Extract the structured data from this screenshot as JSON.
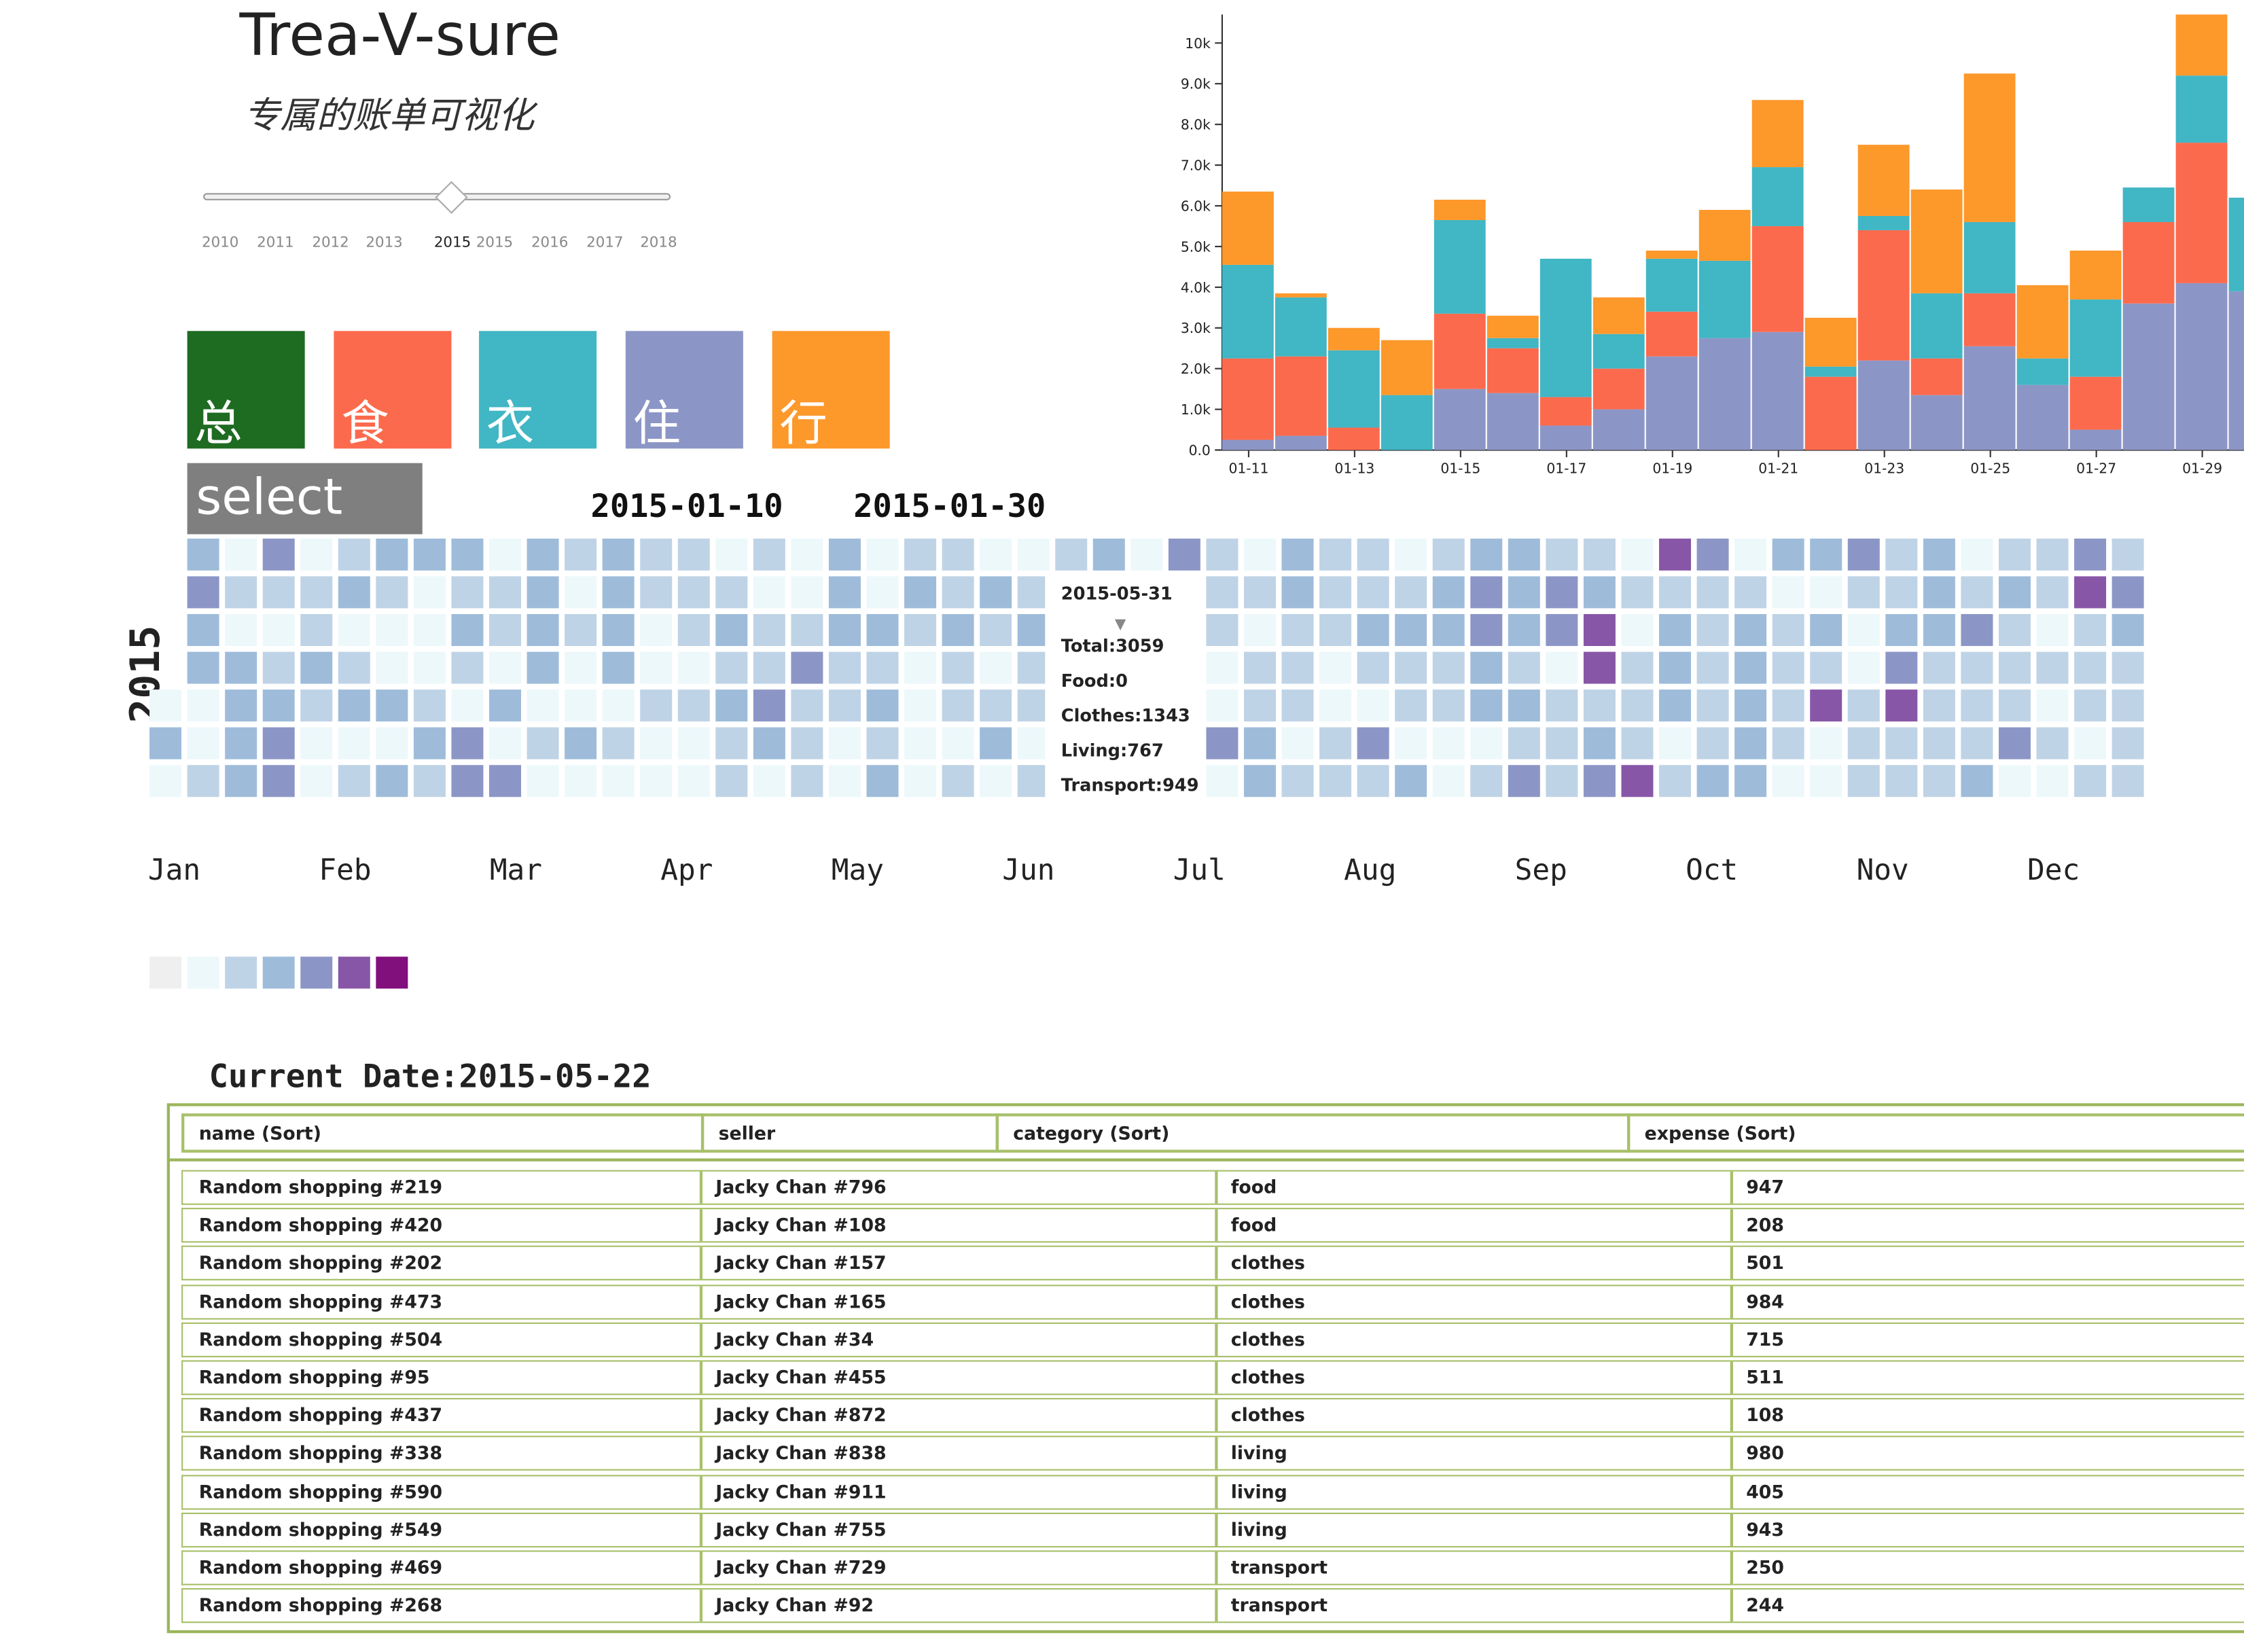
{
  "header": {
    "title": "Trea-V-sure",
    "subtitle": "专属的账单可视化"
  },
  "year_slider": {
    "ticks": [
      "2010",
      "2011",
      "2012",
      "2013",
      "2015",
      "2015",
      "2016",
      "2017",
      "2018"
    ],
    "selected_index": 4
  },
  "categories": [
    {
      "label": "总",
      "color": "#1e6b22"
    },
    {
      "label": "食",
      "color": "#fc6a4d"
    },
    {
      "label": "衣",
      "color": "#41b6c4"
    },
    {
      "label": "住",
      "color": "#8c96c6"
    },
    {
      "label": "行",
      "color": "#fd982b"
    }
  ],
  "select_button": "select",
  "range": {
    "start": "2015-01-10",
    "end": "2015-01-30"
  },
  "calendar": {
    "year": "2015",
    "months": [
      "Jan",
      "Feb",
      "Mar",
      "Apr",
      "May",
      "Jun",
      "Jul",
      "Aug",
      "Sep",
      "Oct",
      "Nov",
      "Dec"
    ],
    "palette": [
      "#efefef",
      "#edf8fb",
      "#bfd3e6",
      "#9ebcda",
      "#8c96c6",
      "#8856a7",
      "#810f7c"
    ],
    "levels": "131343311212133334212344122321123123123211313311123232321441221314333312121211313333121221121122212111232322212243111242223332211113232323211112232212132123112322122242223343321114222444212123222114112122333322212222112222321421232213233221134433123332324244122223552341212225523331242222231233333312222131325114211222223452233322221242223232224122121214522212243222244342222233234531221123"
  },
  "tooltip": {
    "date": "2015-05-31",
    "total": "Total:3059",
    "food": "Food:0",
    "clothes": "Clothes:1343",
    "living": "Living:767",
    "transport": "Transport:949"
  },
  "chart_data": {
    "type": "bar",
    "stacked": true,
    "categories": [
      "01-11",
      "01-12",
      "01-13",
      "01-14",
      "01-15",
      "01-16",
      "01-17",
      "01-18",
      "01-19",
      "01-20",
      "01-21",
      "01-22",
      "01-23",
      "01-24",
      "01-25",
      "01-26",
      "01-27",
      "01-28",
      "01-29",
      "01-30"
    ],
    "tick_labels": [
      "01-11",
      "01-13",
      "01-15",
      "01-17",
      "01-19",
      "01-21",
      "01-23",
      "01-25",
      "01-27",
      "01-29"
    ],
    "yticks": [
      "0.0",
      "1.0k",
      "2.0k",
      "3.0k",
      "4.0k",
      "5.0k",
      "6.0k",
      "7.0k",
      "8.0k",
      "9.0k",
      "10k"
    ],
    "ylim": [
      0,
      10700
    ],
    "series": [
      {
        "color": "#8c96c6",
        "values": [
          250,
          350,
          0,
          0,
          1500,
          1400,
          600,
          1000,
          2300,
          2750,
          2900,
          0,
          2200,
          1350,
          2550,
          1600,
          500,
          3600,
          4100,
          3900
        ]
      },
      {
        "color": "#fc6a4d",
        "values": [
          2000,
          1950,
          550,
          0,
          1850,
          1100,
          700,
          1000,
          1100,
          0,
          2600,
          1800,
          3200,
          900,
          1300,
          0,
          1300,
          2000,
          3450,
          0
        ]
      },
      {
        "color": "#41b6c4",
        "values": [
          2300,
          1450,
          1900,
          1350,
          2300,
          250,
          3400,
          850,
          1300,
          1900,
          1450,
          250,
          350,
          1600,
          1750,
          650,
          1900,
          850,
          1650,
          2300
        ]
      },
      {
        "color": "#fd982b",
        "values": [
          1800,
          100,
          550,
          1350,
          500,
          550,
          0,
          900,
          200,
          1250,
          1650,
          1200,
          1750,
          2550,
          3650,
          1800,
          1200,
          0,
          1500,
          0
        ]
      }
    ]
  },
  "table": {
    "current_date": "Current Date:2015-05-22",
    "headers": [
      "name (Sort)",
      "seller",
      "category (Sort)",
      "expense (Sort)"
    ],
    "rows": [
      [
        "Random shopping #219",
        "Jacky Chan #796",
        "food",
        "947"
      ],
      [
        "Random shopping #420",
        "Jacky Chan #108",
        "food",
        "208"
      ],
      [
        "Random shopping #202",
        "Jacky Chan #157",
        "clothes",
        "501"
      ],
      [
        "Random shopping #473",
        "Jacky Chan #165",
        "clothes",
        "984"
      ],
      [
        "Random shopping #504",
        "Jacky Chan #34",
        "clothes",
        "715"
      ],
      [
        "Random shopping #95",
        "Jacky Chan #455",
        "clothes",
        "511"
      ],
      [
        "Random shopping #437",
        "Jacky Chan #872",
        "clothes",
        "108"
      ],
      [
        "Random shopping #338",
        "Jacky Chan #838",
        "living",
        "980"
      ],
      [
        "Random shopping #590",
        "Jacky Chan #911",
        "living",
        "405"
      ],
      [
        "Random shopping #549",
        "Jacky Chan #755",
        "living",
        "943"
      ],
      [
        "Random shopping #469",
        "Jacky Chan #729",
        "transport",
        "250"
      ],
      [
        "Random shopping #268",
        "Jacky Chan #92",
        "transport",
        "244"
      ]
    ]
  }
}
